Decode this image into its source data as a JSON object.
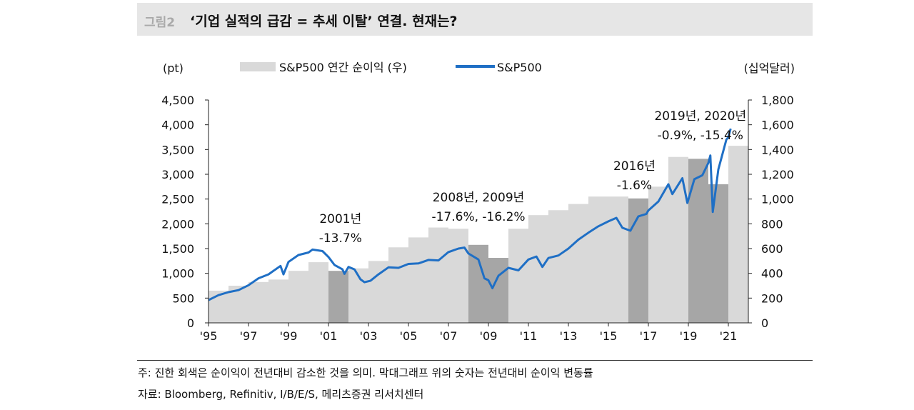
{
  "figure": {
    "label": "그림2",
    "title": "‘기업 실적의 급감 = 추세 이탈’ 연결. 현재는?"
  },
  "footer": {
    "note": "주: 진한 회색은 순이익이 전년대비 감소한 것을 의미. 막대그래프 위의 숫자는 전년대비 순이익 변동률",
    "source": "자료: Bloomberg, Refinitiv, I/B/E/S, 메리츠증권 리서치센터"
  },
  "chart_data": {
    "type": "bar+line",
    "left_axis_unit": "(pt)",
    "right_axis_unit": "(십억달러)",
    "y_left": {
      "min": 0,
      "max": 4500,
      "ticks": [
        0,
        500,
        1000,
        1500,
        2000,
        2500,
        3000,
        3500,
        4000,
        4500
      ],
      "tick_labels": [
        "0",
        "500",
        "1,000",
        "1,500",
        "2,000",
        "2,500",
        "3,000",
        "3,500",
        "4,000",
        "4,500"
      ]
    },
    "y_right": {
      "min": 0,
      "max": 1800,
      "ticks": [
        0,
        200,
        400,
        600,
        800,
        1000,
        1200,
        1400,
        1600,
        1800
      ],
      "tick_labels": [
        "0",
        "200",
        "400",
        "600",
        "800",
        "1,000",
        "1,200",
        "1,400",
        "1,600",
        "1,800"
      ]
    },
    "x_axis": {
      "start_year": 1995,
      "end_year": 2022,
      "tick_years": [
        1995,
        1997,
        1999,
        2001,
        2003,
        2005,
        2007,
        2009,
        2011,
        2013,
        2015,
        2017,
        2019,
        2021
      ],
      "tick_labels": [
        "'95",
        "'97",
        "'99",
        "'01",
        "'03",
        "'05",
        "'07",
        "'09",
        "'11",
        "'13",
        "'15",
        "'17",
        "'19",
        "'21"
      ]
    },
    "bar_series": {
      "name": "S&P500 연간 순이익 (우)",
      "color": "#d9d9d9",
      "decline_color": "#a6a6a6",
      "bars": [
        {
          "year": 1995,
          "value": 260,
          "decline": false
        },
        {
          "year": 1996,
          "value": 300,
          "decline": false
        },
        {
          "year": 1997,
          "value": 330,
          "decline": false
        },
        {
          "year": 1998,
          "value": 350,
          "decline": false
        },
        {
          "year": 1999,
          "value": 420,
          "decline": false
        },
        {
          "year": 2000,
          "value": 490,
          "decline": false
        },
        {
          "year": 2001,
          "value": 420,
          "decline": true
        },
        {
          "year": 2002,
          "value": 440,
          "decline": false
        },
        {
          "year": 2003,
          "value": 500,
          "decline": false
        },
        {
          "year": 2004,
          "value": 610,
          "decline": false
        },
        {
          "year": 2005,
          "value": 690,
          "decline": false
        },
        {
          "year": 2006,
          "value": 770,
          "decline": false
        },
        {
          "year": 2007,
          "value": 760,
          "decline": false
        },
        {
          "year": 2008,
          "value": 630,
          "decline": true
        },
        {
          "year": 2009,
          "value": 525,
          "decline": true
        },
        {
          "year": 2010,
          "value": 760,
          "decline": false
        },
        {
          "year": 2011,
          "value": 870,
          "decline": false
        },
        {
          "year": 2012,
          "value": 910,
          "decline": false
        },
        {
          "year": 2013,
          "value": 960,
          "decline": false
        },
        {
          "year": 2014,
          "value": 1020,
          "decline": false
        },
        {
          "year": 2015,
          "value": 1020,
          "decline": false
        },
        {
          "year": 2016,
          "value": 1005,
          "decline": true
        },
        {
          "year": 2017,
          "value": 1100,
          "decline": false
        },
        {
          "year": 2018,
          "value": 1340,
          "decline": false
        },
        {
          "year": 2019,
          "value": 1325,
          "decline": true
        },
        {
          "year": 2020,
          "value": 1120,
          "decline": true
        },
        {
          "year": 2021,
          "value": 1430,
          "decline": false
        }
      ]
    },
    "line_series": {
      "name": "S&P500",
      "color": "#1f6fc5",
      "points": [
        [
          1995.0,
          460
        ],
        [
          1995.5,
          560
        ],
        [
          1996.0,
          620
        ],
        [
          1996.5,
          660
        ],
        [
          1997.0,
          760
        ],
        [
          1997.5,
          900
        ],
        [
          1998.0,
          980
        ],
        [
          1998.6,
          1150
        ],
        [
          1998.75,
          980
        ],
        [
          1999.0,
          1230
        ],
        [
          1999.5,
          1370
        ],
        [
          2000.0,
          1420
        ],
        [
          2000.2,
          1480
        ],
        [
          2000.7,
          1450
        ],
        [
          2001.0,
          1330
        ],
        [
          2001.3,
          1170
        ],
        [
          2001.7,
          1080
        ],
        [
          2001.8,
          990
        ],
        [
          2002.0,
          1130
        ],
        [
          2002.3,
          1080
        ],
        [
          2002.6,
          880
        ],
        [
          2002.8,
          820
        ],
        [
          2003.1,
          850
        ],
        [
          2003.5,
          980
        ],
        [
          2004.0,
          1120
        ],
        [
          2004.5,
          1110
        ],
        [
          2005.0,
          1190
        ],
        [
          2005.5,
          1200
        ],
        [
          2006.0,
          1270
        ],
        [
          2006.5,
          1260
        ],
        [
          2007.0,
          1430
        ],
        [
          2007.5,
          1500
        ],
        [
          2007.8,
          1520
        ],
        [
          2008.0,
          1400
        ],
        [
          2008.5,
          1280
        ],
        [
          2008.8,
          900
        ],
        [
          2009.0,
          860
        ],
        [
          2009.2,
          700
        ],
        [
          2009.5,
          950
        ],
        [
          2010.0,
          1110
        ],
        [
          2010.5,
          1060
        ],
        [
          2011.0,
          1280
        ],
        [
          2011.4,
          1340
        ],
        [
          2011.7,
          1130
        ],
        [
          2012.0,
          1310
        ],
        [
          2012.5,
          1360
        ],
        [
          2013.0,
          1500
        ],
        [
          2013.5,
          1680
        ],
        [
          2014.0,
          1820
        ],
        [
          2014.5,
          1950
        ],
        [
          2015.0,
          2050
        ],
        [
          2015.4,
          2120
        ],
        [
          2015.7,
          1920
        ],
        [
          2016.1,
          1860
        ],
        [
          2016.5,
          2150
        ],
        [
          2016.9,
          2200
        ],
        [
          2017.0,
          2270
        ],
        [
          2017.5,
          2450
        ],
        [
          2018.0,
          2800
        ],
        [
          2018.2,
          2600
        ],
        [
          2018.7,
          2920
        ],
        [
          2018.95,
          2420
        ],
        [
          2019.3,
          2900
        ],
        [
          2019.7,
          2980
        ],
        [
          2020.0,
          3230
        ],
        [
          2020.1,
          3380
        ],
        [
          2020.22,
          2240
        ],
        [
          2020.5,
          3100
        ],
        [
          2020.7,
          3400
        ],
        [
          2020.9,
          3700
        ],
        [
          2021.0,
          3750
        ],
        [
          2021.1,
          3900
        ],
        [
          2021.12,
          3920
        ]
      ]
    },
    "annotations": [
      {
        "year": 2001.6,
        "lines": [
          "2001년",
          "-13.7%"
        ]
      },
      {
        "year": 2008.5,
        "lines": [
          "2008년, 2009년",
          "-17.6%, -16.2%"
        ]
      },
      {
        "year": 2016.3,
        "lines": [
          "2016년",
          "-1.6%"
        ]
      },
      {
        "year": 2019.6,
        "lines": [
          "2019년, 2020년",
          "-0.9%, -15.4%"
        ]
      }
    ]
  }
}
